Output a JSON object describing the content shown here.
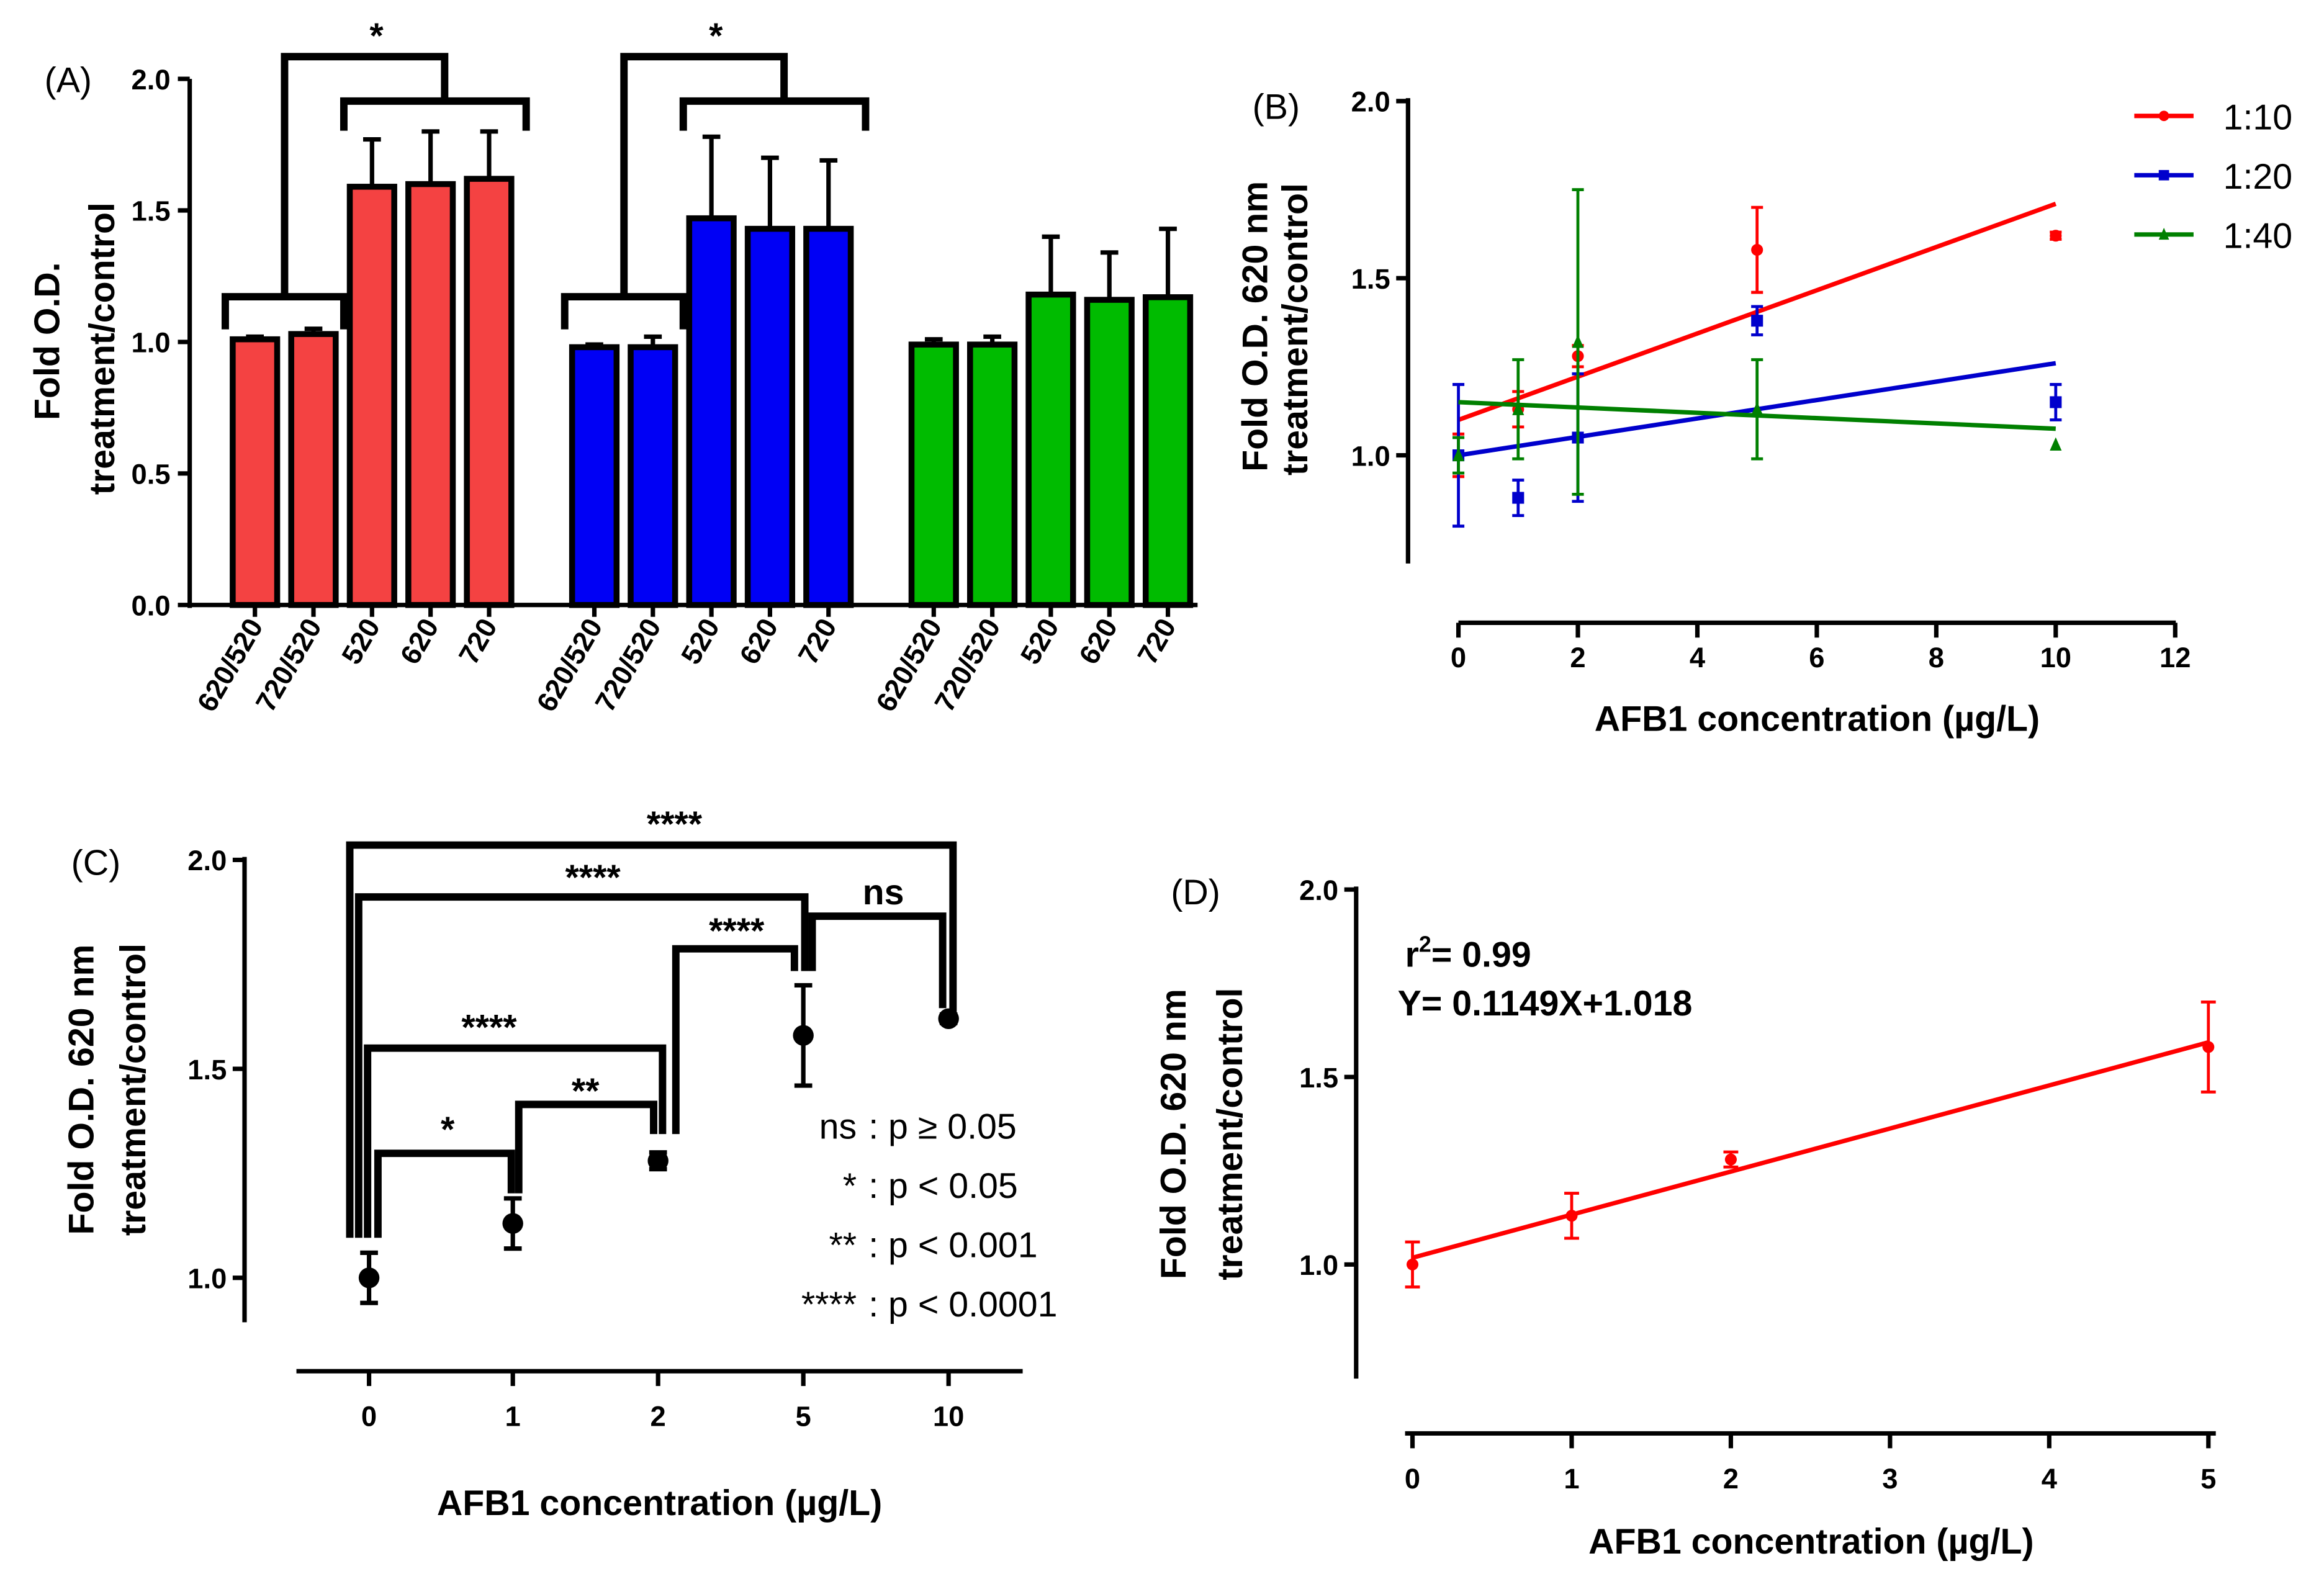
{
  "chart_data": [
    {
      "panel": "(A)",
      "type": "bar",
      "ylabel": "Fold O.D.",
      "ylabel2": "treatment/control",
      "ylim": [
        0,
        2.0
      ],
      "yticks": [
        "0.0",
        "0.5",
        "1.0",
        "1.5",
        "2.0"
      ],
      "categories": [
        "620/520",
        "720/520",
        "520",
        "620",
        "720"
      ],
      "groups": [
        {
          "color": "#f44242",
          "values": [
            1.01,
            1.03,
            1.59,
            1.6,
            1.62
          ],
          "errors": [
            0.01,
            0.02,
            0.18,
            0.2,
            0.18
          ],
          "significance": "*"
        },
        {
          "color": "#0000f5",
          "values": [
            0.98,
            0.98,
            1.47,
            1.43,
            1.43
          ],
          "errors": [
            0.01,
            0.04,
            0.31,
            0.27,
            0.26
          ],
          "significance": "*"
        },
        {
          "color": "#00bb00",
          "values": [
            0.99,
            0.99,
            1.18,
            1.16,
            1.17
          ],
          "errors": [
            0.02,
            0.03,
            0.22,
            0.18,
            0.26
          ]
        }
      ]
    },
    {
      "panel": "(B)",
      "type": "line",
      "xlabel": "AFB1 concentration (µg/L)",
      "ylabel": "Fold O.D. 620 nm",
      "ylabel2": "treatment/control",
      "xlim": [
        0,
        12
      ],
      "ylim": [
        0.7,
        2.0
      ],
      "xticks": [
        "0",
        "2",
        "4",
        "6",
        "8",
        "10",
        "12"
      ],
      "yticks": [
        "1.0",
        "1.5",
        "2.0"
      ],
      "x": [
        0,
        1,
        2,
        5,
        10
      ],
      "legend_position": "top-right",
      "series": [
        {
          "name": "1:10",
          "color": "#ff0000",
          "marker": "circle",
          "values": [
            1.0,
            1.13,
            1.28,
            1.58,
            1.62
          ],
          "errors": [
            0.06,
            0.05,
            0.03,
            0.12,
            0.01
          ],
          "fit": [
            1.1,
            1.71
          ]
        },
        {
          "name": "1:20",
          "color": "#0000cc",
          "marker": "square",
          "values": [
            1.0,
            0.88,
            1.05,
            1.38,
            1.15
          ],
          "errors": [
            0.2,
            0.05,
            0.18,
            0.04,
            0.05
          ],
          "fit": [
            1.0,
            1.26
          ]
        },
        {
          "name": "1:40",
          "color": "#008000",
          "marker": "triangle",
          "values": [
            1.0,
            1.13,
            1.32,
            1.13,
            1.03
          ],
          "errors": [
            0.05,
            0.14,
            0.43,
            0.14,
            0.0
          ],
          "fit": [
            1.15,
            1.075
          ]
        }
      ]
    },
    {
      "panel": "(C)",
      "type": "scatter",
      "xlabel": "AFB1 concentration (µg/L)",
      "ylabel": "Fold O.D. 620 nm",
      "ylabel2": "treatment/control",
      "categories": [
        "0",
        "1",
        "2",
        "5",
        "10"
      ],
      "yticks": [
        "1.0",
        "1.5",
        "2.0"
      ],
      "ylim": [
        0.9,
        2.0
      ],
      "values": [
        1.0,
        1.13,
        1.28,
        1.58,
        1.62
      ],
      "errors": [
        0.06,
        0.06,
        0.02,
        0.12,
        0.01
      ],
      "comparisons": [
        {
          "from": "0",
          "to": "10",
          "label": "****"
        },
        {
          "from": "0",
          "to": "5",
          "label": "****"
        },
        {
          "from": "5",
          "to": "10",
          "label": "ns"
        },
        {
          "from": "2",
          "to": "5",
          "label": "****"
        },
        {
          "from": "0",
          "to": "2",
          "label": "****"
        },
        {
          "from": "1",
          "to": "2",
          "label": "**"
        },
        {
          "from": "0",
          "to": "1",
          "label": "*"
        }
      ],
      "legend": [
        {
          "sym": "ns",
          "text": ": p ≥ 0.05"
        },
        {
          "sym": "*",
          "text": ": p < 0.05"
        },
        {
          "sym": "**",
          "text": ": p < 0.001"
        },
        {
          "sym": "****",
          "text": ": p < 0.0001"
        }
      ]
    },
    {
      "panel": "(D)",
      "type": "line",
      "xlabel": "AFB1 concentration (µg/L)",
      "ylabel": "Fold O.D. 620 nm",
      "ylabel2": "treatment/control",
      "xlim": [
        0,
        5
      ],
      "ylim": [
        0.75,
        2.0
      ],
      "xticks": [
        "0",
        "1",
        "2",
        "3",
        "4",
        "5"
      ],
      "yticks": [
        "1.0",
        "1.5",
        "2.0"
      ],
      "x": [
        0,
        1,
        2,
        5
      ],
      "values": [
        1.0,
        1.13,
        1.28,
        1.58
      ],
      "errors": [
        0.06,
        0.06,
        0.02,
        0.12
      ],
      "color": "#ff0000",
      "r2_label": "r",
      "r2_sup": "2",
      "r2_text": "= 0.99",
      "equation": "Y= 0.1149X+1.018",
      "fit": {
        "slope": 0.1149,
        "intercept": 1.018
      }
    }
  ]
}
